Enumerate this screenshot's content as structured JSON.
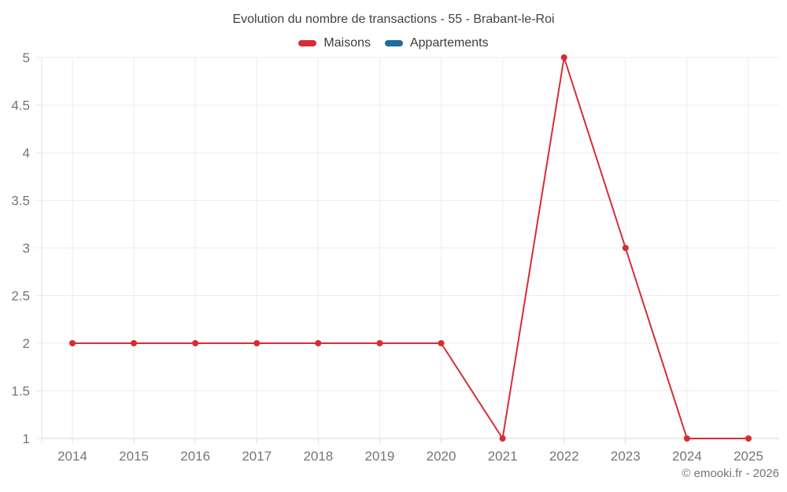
{
  "title": "Evolution du nombre de transactions - 55 - Brabant-le-Roi",
  "footer": {
    "copyright": "© emooki.fr - 2026"
  },
  "chart_data": {
    "type": "line",
    "title": "Evolution du nombre de transactions - 55 - Brabant-le-Roi",
    "x": [
      2014,
      2015,
      2016,
      2017,
      2018,
      2019,
      2020,
      2021,
      2022,
      2023,
      2024,
      2025
    ],
    "series": [
      {
        "name": "Maisons",
        "color": "#d62d35",
        "values": [
          2,
          2,
          2,
          2,
          2,
          2,
          2,
          1,
          5,
          3,
          1,
          1
        ]
      },
      {
        "name": "Appartements",
        "color": "#1a6d9c",
        "values": []
      }
    ],
    "xlabel": "",
    "ylabel": "",
    "ylim": [
      1,
      5
    ],
    "yticks": [
      1,
      1.5,
      2,
      2.5,
      3,
      3.5,
      4,
      4.5,
      5
    ],
    "grid": true,
    "legend_position": "top",
    "marker": "circle"
  }
}
